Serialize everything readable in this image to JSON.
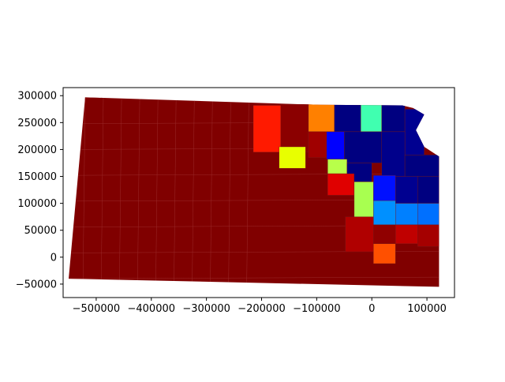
{
  "chart_data": {
    "type": "choropleth",
    "title": "",
    "xlabel": "",
    "ylabel": "",
    "xlim": [
      -560000,
      150000
    ],
    "ylim": [
      -75000,
      315000
    ],
    "x_ticks": [
      -500000,
      -400000,
      -300000,
      -200000,
      -100000,
      0,
      100000
    ],
    "x_tick_labels": [
      "−500000",
      "−400000",
      "−300000",
      "−200000",
      "−100000",
      "0",
      "100000"
    ],
    "y_ticks": [
      -50000,
      0,
      50000,
      100000,
      150000,
      200000,
      250000,
      300000
    ],
    "y_tick_labels": [
      "−50000",
      "0",
      "50000",
      "100000",
      "150000",
      "200000",
      "250000",
      "300000"
    ],
    "grid": false,
    "legend": "none",
    "colormap": "jet",
    "outline": [
      [
        -520000,
        297000
      ],
      [
        -95000,
        283000
      ],
      [
        55000,
        282000
      ],
      [
        75000,
        277000
      ],
      [
        95000,
        265000
      ],
      [
        80000,
        236000
      ],
      [
        95000,
        205000
      ],
      [
        122000,
        187000
      ],
      [
        122000,
        -55000
      ],
      [
        -550000,
        -40000
      ]
    ],
    "regions": [
      {
        "name": "red-ne-1",
        "color": "#ff1a00",
        "x0": -215000,
        "x1": -165000,
        "y0": 195000,
        "y1": 282000
      },
      {
        "name": "orange-n",
        "color": "#ff8000",
        "x0": -115000,
        "x1": -68000,
        "y0": 233000,
        "y1": 284000
      },
      {
        "name": "navy-n-1",
        "color": "#000080",
        "x0": -68000,
        "x1": -20000,
        "y0": 233000,
        "y1": 284000
      },
      {
        "name": "teal-n",
        "color": "#40ffb0",
        "x0": -20000,
        "x1": 18000,
        "y0": 233000,
        "y1": 284000
      },
      {
        "name": "navy-ne-1",
        "color": "#000080",
        "x0": 18000,
        "x1": 60000,
        "y0": 233000,
        "y1": 284000
      },
      {
        "name": "navy-ne-2",
        "color": "#000090",
        "x0": 60000,
        "x1": 95000,
        "y0": 190000,
        "y1": 275000
      },
      {
        "name": "darkred-n-1",
        "color": "#8b0000",
        "x0": -165000,
        "x1": -115000,
        "y0": 195000,
        "y1": 284000
      },
      {
        "name": "darkred-n-2",
        "color": "#a00000",
        "x0": -115000,
        "x1": -80000,
        "y0": 185000,
        "y1": 233000
      },
      {
        "name": "yellow-c",
        "color": "#e8ff00",
        "x0": -168000,
        "x1": -120000,
        "y0": 165000,
        "y1": 205000
      },
      {
        "name": "blue-c",
        "color": "#0000ff",
        "x0": -82000,
        "x1": -50000,
        "y0": 182000,
        "y1": 233000
      },
      {
        "name": "navy-c-1",
        "color": "#000080",
        "x0": -50000,
        "x1": 18000,
        "y0": 175000,
        "y1": 233000
      },
      {
        "name": "navy-c-2",
        "color": "#00008b",
        "x0": 18000,
        "x1": 60000,
        "y0": 150000,
        "y1": 233000
      },
      {
        "name": "navy-c-3",
        "color": "#000080",
        "x0": 60000,
        "x1": 122000,
        "y0": 150000,
        "y1": 190000
      },
      {
        "name": "yellowgreen-c-1",
        "color": "#b8ff4a",
        "x0": -80000,
        "x1": -45000,
        "y0": 155000,
        "y1": 182000
      },
      {
        "name": "navy-c-4",
        "color": "#000080",
        "x0": -45000,
        "x1": 0,
        "y0": 140000,
        "y1": 175000
      },
      {
        "name": "red-c-2",
        "color": "#e00000",
        "x0": -80000,
        "x1": -32000,
        "y0": 115000,
        "y1": 155000
      },
      {
        "name": "yellowgreen-c-2",
        "color": "#a8ff50",
        "x0": -32000,
        "x1": 3000,
        "y0": 75000,
        "y1": 140000
      },
      {
        "name": "blue-ec-1",
        "color": "#0010ff",
        "x0": 3000,
        "x1": 43000,
        "y0": 105000,
        "y1": 152000
      },
      {
        "name": "navy-ec-1",
        "color": "#000090",
        "x0": 43000,
        "x1": 83000,
        "y0": 100000,
        "y1": 150000
      },
      {
        "name": "navy-ec-2",
        "color": "#000080",
        "x0": 83000,
        "x1": 122000,
        "y0": 100000,
        "y1": 150000
      },
      {
        "name": "sky-e-1",
        "color": "#0090ff",
        "x0": 3000,
        "x1": 43000,
        "y0": 60000,
        "y1": 105000
      },
      {
        "name": "sky-e-2",
        "color": "#0080ff",
        "x0": 43000,
        "x1": 83000,
        "y0": 60000,
        "y1": 100000
      },
      {
        "name": "sky-e-3",
        "color": "#0070ff",
        "x0": 83000,
        "x1": 122000,
        "y0": 60000,
        "y1": 100000
      },
      {
        "name": "darkred-se-1",
        "color": "#b00000",
        "x0": -48000,
        "x1": 3000,
        "y0": 10000,
        "y1": 75000
      },
      {
        "name": "darkred-se-2",
        "color": "#c00000",
        "x0": 43000,
        "x1": 83000,
        "y0": 25000,
        "y1": 60000
      },
      {
        "name": "darkred-se-3",
        "color": "#a50000",
        "x0": 83000,
        "x1": 122000,
        "y0": 20000,
        "y1": 60000
      },
      {
        "name": "orange-se",
        "color": "#ff5000",
        "x0": 3000,
        "x1": 43000,
        "y0": -12000,
        "y1": 25000
      },
      {
        "name": "darkred-se-4",
        "color": "#900000",
        "x0": 3000,
        "x1": 43000,
        "y0": 25000,
        "y1": 60000
      }
    ]
  }
}
